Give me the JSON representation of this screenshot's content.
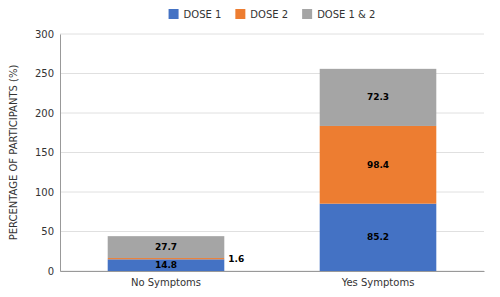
{
  "chart_data": {
    "type": "bar",
    "stacked": true,
    "categories": [
      "No Symptoms",
      "Yes Symptoms"
    ],
    "series": [
      {
        "name": "DOSE 1",
        "color": "#4472C4",
        "values": [
          14.8,
          85.2
        ]
      },
      {
        "name": "DOSE 2",
        "color": "#ED7D31",
        "values": [
          1.6,
          98.4
        ]
      },
      {
        "name": "DOSE 1 & 2",
        "color": "#A5A5A5",
        "values": [
          27.7,
          72.3
        ]
      }
    ],
    "ylabel": "PERCENTAGE OF PARTICIPANTS (%)",
    "ylim": [
      0,
      300
    ],
    "yticks": [
      0,
      50,
      100,
      150,
      200,
      250,
      300
    ],
    "grid": true,
    "legend": "top",
    "data_labels": true
  }
}
